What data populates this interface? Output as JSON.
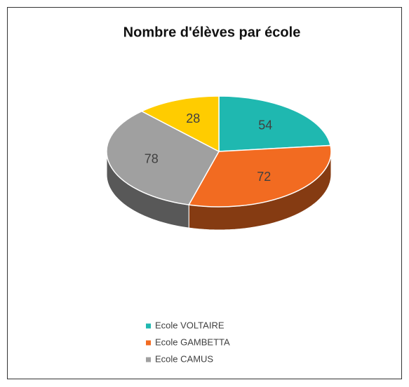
{
  "chart_data": {
    "type": "pie",
    "title": "Nombre d'élèves par école",
    "categories": [
      "Ecole VOLTAIRE",
      "Ecole GAMBETTA",
      "Ecole CAMUS",
      null
    ],
    "values": [
      54,
      72,
      78,
      28
    ],
    "colors": [
      "#1fb8b0",
      "#f26b21",
      "#a0a0a0",
      "#ffcc00"
    ],
    "legend": "bottom"
  }
}
